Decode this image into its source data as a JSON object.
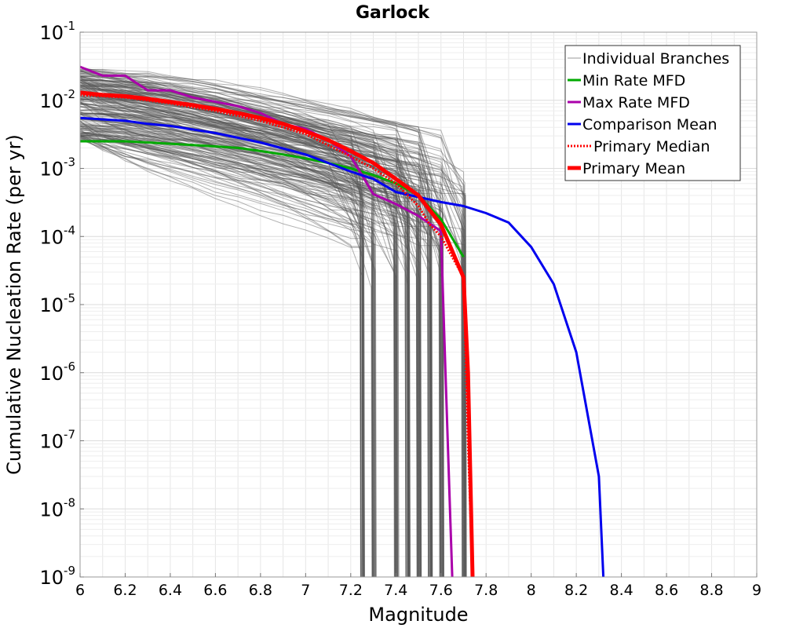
{
  "chart_data": {
    "type": "line",
    "title": "Garlock",
    "xlabel": "Magnitude",
    "ylabel": "Cumulative Nucleation Rate (per yr)",
    "xlim": [
      6,
      9
    ],
    "ylim": [
      1e-09,
      0.1
    ],
    "yscale": "log",
    "x_ticks": [
      6,
      6.2,
      6.4,
      6.6,
      6.8,
      7,
      7.2,
      7.4,
      7.6,
      7.8,
      8,
      8.2,
      8.4,
      8.6,
      8.8,
      9
    ],
    "x_tick_labels": [
      "6",
      "6.2",
      "6.4",
      "6.6",
      "6.8",
      "7",
      "7.2",
      "7.4",
      "7.6",
      "7.8",
      "8",
      "8.2",
      "8.4",
      "8.6",
      "8.8",
      "9"
    ],
    "y_tick_exponents": [
      "-9",
      "-8",
      "-7",
      "-6",
      "-5",
      "-4",
      "-3",
      "-2",
      "-1"
    ],
    "y_tick_base": "10",
    "grid": true,
    "legend_position": "top-right",
    "series": [
      {
        "name": "Individual Branches",
        "color": "#555555",
        "note_count_approx": 300,
        "x": [],
        "y": []
      },
      {
        "name": "Min Rate MFD",
        "color": "#00aa00",
        "x": [
          6.0,
          6.1,
          6.2,
          6.3,
          6.4,
          6.5,
          6.6,
          6.7,
          6.8,
          6.9,
          7.0,
          7.1,
          7.2,
          7.3,
          7.4,
          7.5,
          7.6,
          7.7
        ],
        "y": [
          0.0025,
          0.0025,
          0.0025,
          0.0024,
          0.0023,
          0.0022,
          0.0021,
          0.002,
          0.0018,
          0.0016,
          0.0014,
          0.0012,
          0.001,
          0.0008,
          0.0006,
          0.0004,
          0.00018,
          5e-05
        ]
      },
      {
        "name": "Max Rate MFD",
        "color": "#aa00aa",
        "x": [
          6.0,
          6.1,
          6.2,
          6.3,
          6.4,
          6.5,
          6.6,
          6.7,
          6.8,
          6.9,
          7.0,
          7.1,
          7.2,
          7.3,
          7.4,
          7.5,
          7.6,
          7.62,
          7.64,
          7.65
        ],
        "y": [
          0.031,
          0.023,
          0.023,
          0.014,
          0.014,
          0.011,
          0.0095,
          0.0082,
          0.0065,
          0.0045,
          0.0038,
          0.0026,
          0.0015,
          0.00042,
          0.0003,
          0.0002,
          0.00012,
          1e-06,
          1e-08,
          1e-09
        ]
      },
      {
        "name": "Comparison Mean",
        "color": "#0000ee",
        "x": [
          6.0,
          6.2,
          6.3,
          6.4,
          6.6,
          6.8,
          7.0,
          7.1,
          7.2,
          7.3,
          7.4,
          7.5,
          7.6,
          7.7,
          7.8,
          7.9,
          8.0,
          8.1,
          8.2,
          8.3,
          8.32
        ],
        "y": [
          0.0055,
          0.005,
          0.0045,
          0.0042,
          0.0033,
          0.0024,
          0.0016,
          0.0012,
          0.0009,
          0.0007,
          0.00045,
          0.00038,
          0.00032,
          0.00028,
          0.00022,
          0.00016,
          7e-05,
          2e-05,
          2e-06,
          3e-08,
          1e-09
        ]
      },
      {
        "name": "Primary Median",
        "color": "#ff0000",
        "dashed": true,
        "x": [
          6.0,
          6.2,
          6.4,
          6.6,
          6.8,
          7.0,
          7.2,
          7.3,
          7.4,
          7.5,
          7.55,
          7.6,
          7.7,
          7.72,
          7.74
        ],
        "y": [
          0.012,
          0.011,
          0.009,
          0.007,
          0.005,
          0.0032,
          0.0015,
          0.001,
          0.0006,
          0.00028,
          0.00015,
          0.0001,
          2.5e-05,
          1e-07,
          1e-09
        ]
      },
      {
        "name": "Primary Mean",
        "color": "#ff0000",
        "x": [
          6.0,
          6.1,
          6.2,
          6.3,
          6.4,
          6.5,
          6.6,
          6.7,
          6.8,
          6.9,
          7.0,
          7.1,
          7.2,
          7.3,
          7.4,
          7.5,
          7.6,
          7.7,
          7.72,
          7.74
        ],
        "y": [
          0.013,
          0.012,
          0.0115,
          0.0105,
          0.0095,
          0.0085,
          0.0075,
          0.0065,
          0.0055,
          0.0045,
          0.0035,
          0.0026,
          0.0018,
          0.0012,
          0.0007,
          0.0004,
          0.00015,
          2.5e-05,
          1e-06,
          1e-09
        ]
      }
    ]
  }
}
